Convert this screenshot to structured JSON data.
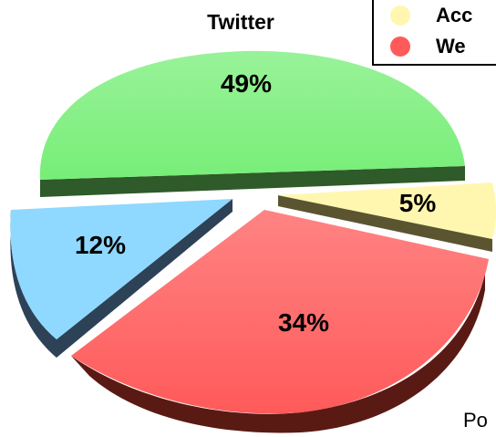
{
  "chart_data": {
    "type": "pie",
    "title": "",
    "slices": [
      {
        "label": "Twitter",
        "value": 49,
        "value_label": "49%",
        "color": "#77ee77",
        "side_color": "#2f5a2a"
      },
      {
        "label": "",
        "value": 5,
        "value_label": "5%",
        "color": "#fff7b0",
        "side_color": "#5a5530"
      },
      {
        "label": "",
        "value": 34,
        "value_label": "34%",
        "color": "#ff5a5a",
        "side_color": "#5a1a14"
      },
      {
        "label": "",
        "value": 12,
        "value_label": "12%",
        "color": "#8fd8ff",
        "side_color": "#2d4257"
      }
    ],
    "legend": {
      "position": "top-right",
      "entries": [
        {
          "label": "Acc",
          "color": "#fff7b0"
        },
        {
          "label": "We",
          "color": "#ff5a5a"
        }
      ]
    },
    "footer_text": "Po"
  }
}
